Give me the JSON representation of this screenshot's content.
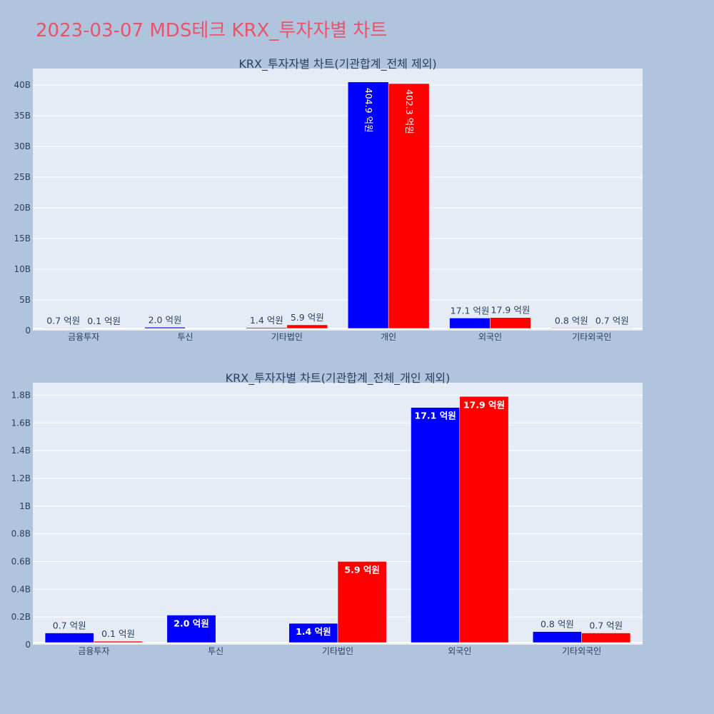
{
  "page": {
    "title": "2023-03-07 MDS테크 KRX_투자자별 차트"
  },
  "colors": {
    "page_bg": "#b0c4de",
    "plot_bg": "#e5ecf6",
    "title": "#e8546a",
    "series_buy": "#0000ff",
    "series_sell": "#ff0000",
    "text": "#2a3f5f"
  },
  "chart_data": [
    {
      "type": "bar",
      "title": "KRX_투자자별 차트(기관합계_전체 제외)",
      "categories": [
        "금융투자",
        "투신",
        "기타법인",
        "개인",
        "외국인",
        "기타외국인"
      ],
      "series": [
        {
          "color": "#0000ff",
          "values": [
            70000000,
            200000000,
            140000000,
            40490000000,
            1710000000,
            80000000
          ],
          "labels": [
            "0.7 억원",
            "2.0 억원",
            "1.4 억원",
            "404.9 억원",
            "17.1 억원",
            "0.8 억원"
          ]
        },
        {
          "color": "#ff0000",
          "values": [
            10000000,
            0,
            590000000,
            40230000000,
            1790000000,
            70000000
          ],
          "labels": [
            "0.1 억원",
            "",
            "5.9 억원",
            "402.3 억원",
            "17.9 억원",
            "0.7 억원"
          ]
        }
      ],
      "yticks": [
        0,
        5000000000,
        10000000000,
        15000000000,
        20000000000,
        25000000000,
        30000000000,
        35000000000,
        40000000000
      ],
      "ytick_labels": [
        "0",
        "5B",
        "10B",
        "15B",
        "20B",
        "25B",
        "30B",
        "35B",
        "40B"
      ],
      "ylim": [
        0,
        42700000000
      ],
      "grid": true,
      "xlabel": "",
      "ylabel": ""
    },
    {
      "type": "bar",
      "title": "KRX_투자자별 차트(기관합계_전체_개인 제외)",
      "categories": [
        "금융투자",
        "투신",
        "기타법인",
        "외국인",
        "기타외국인"
      ],
      "series": [
        {
          "color": "#0000ff",
          "values": [
            70000000,
            200000000,
            140000000,
            1710000000,
            80000000
          ],
          "labels": [
            "0.7 억원",
            "2.0 억원",
            "1.4 억원",
            "17.1 억원",
            "0.8 억원"
          ]
        },
        {
          "color": "#ff0000",
          "values": [
            10000000,
            0,
            590000000,
            1790000000,
            70000000
          ],
          "labels": [
            "0.1 억원",
            "",
            "5.9 억원",
            "17.9 억원",
            "0.7 억원"
          ]
        }
      ],
      "yticks": [
        0,
        200000000,
        400000000,
        600000000,
        800000000,
        1000000000,
        1200000000,
        1400000000,
        1600000000,
        1800000000
      ],
      "ytick_labels": [
        "0",
        "0.2B",
        "0.4B",
        "0.6B",
        "0.8B",
        "1B",
        "1.2B",
        "1.4B",
        "1.6B",
        "1.8B"
      ],
      "ylim": [
        0,
        1890000000
      ],
      "grid": true,
      "xlabel": "",
      "ylabel": ""
    }
  ]
}
